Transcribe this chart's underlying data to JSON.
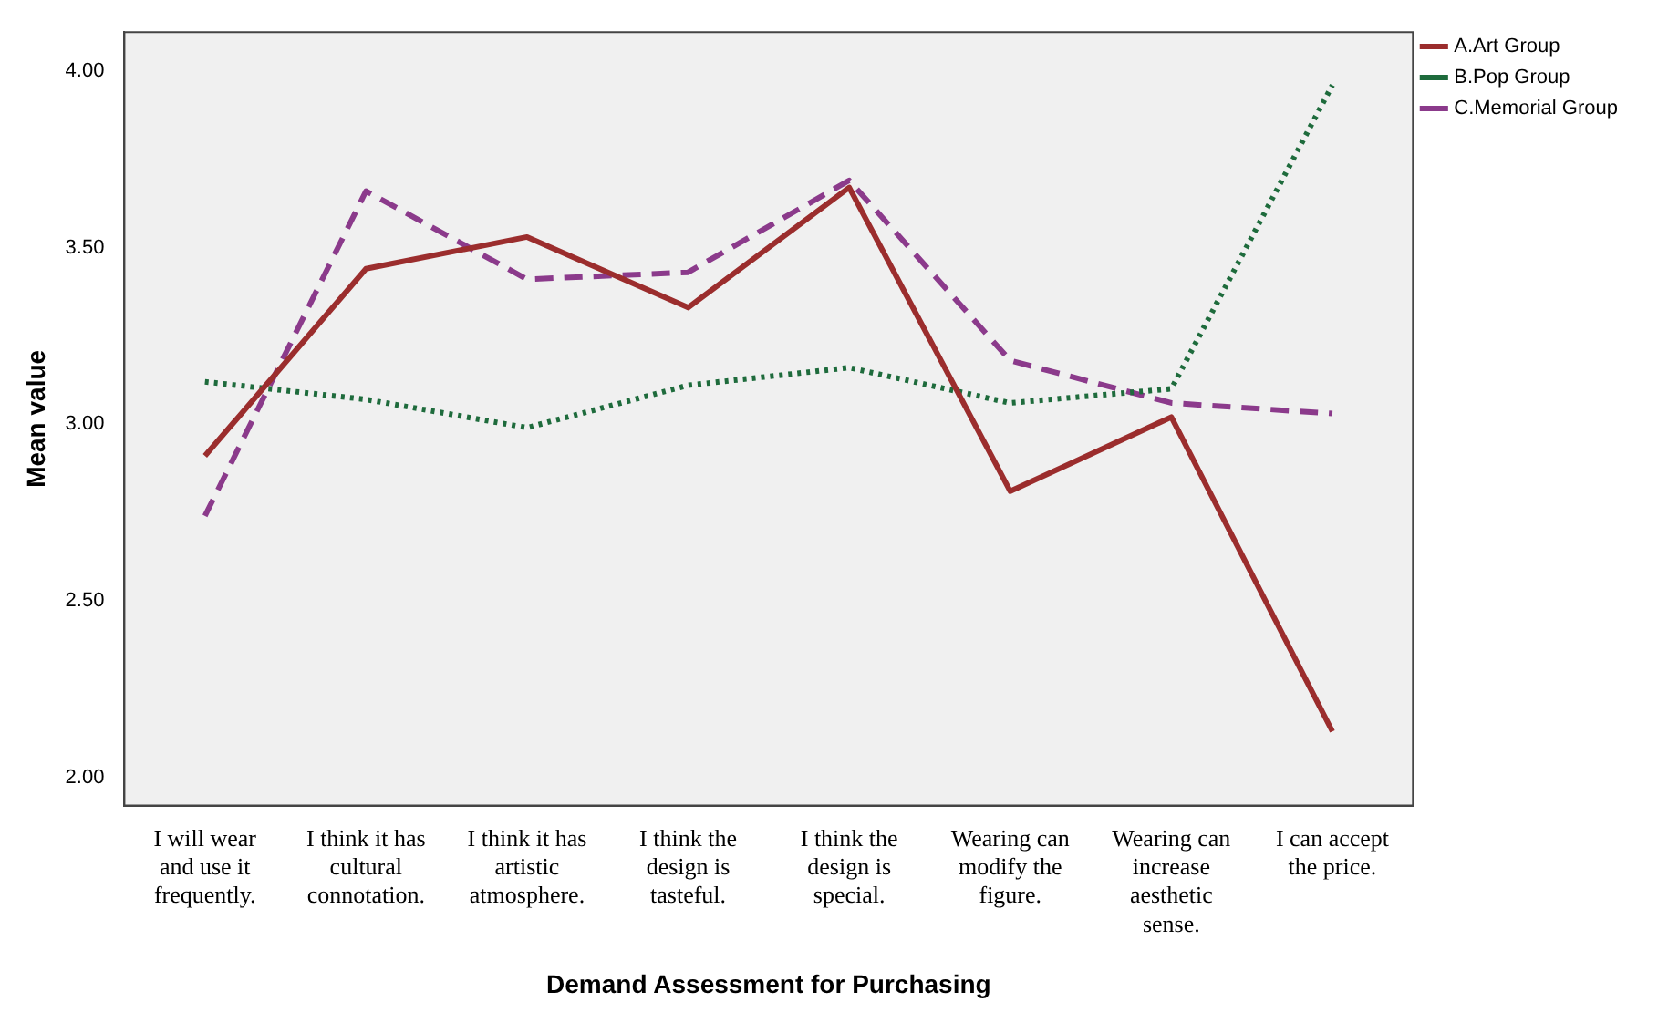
{
  "chart_data": {
    "type": "line",
    "xlabel": "Demand Assessment for Purchasing",
    "ylabel": "Mean value",
    "categories": [
      "I will wear and use it frequently.",
      "I think it has cultural connotation.",
      "I think it has artistic atmosphere.",
      "I think the design is tasteful.",
      "I think the design is special.",
      "Wearing can modify the figure.",
      "Wearing can increase aesthetic sense.",
      "I can accept the price."
    ],
    "series": [
      {
        "name": "A.Art Group",
        "color": "#9b2d2d",
        "line_style": "solid",
        "values": [
          2.91,
          3.44,
          3.53,
          3.33,
          3.67,
          2.81,
          3.02,
          2.13
        ]
      },
      {
        "name": "B.Pop Group",
        "color": "#1e6b3c",
        "line_style": "dotted",
        "values": [
          3.12,
          3.07,
          2.99,
          3.11,
          3.16,
          3.06,
          3.1,
          3.96
        ]
      },
      {
        "name": "C.Memorial Group",
        "color": "#8b3a8b",
        "line_style": "dashed",
        "values": [
          2.74,
          3.66,
          3.41,
          3.43,
          3.69,
          3.18,
          3.06,
          3.03
        ]
      }
    ],
    "ylim": [
      1.92,
      4.11
    ],
    "yticks": [
      {
        "value": 2,
        "label": "2.00"
      },
      {
        "value": 2.5,
        "label": "2.50"
      },
      {
        "value": 3,
        "label": "3.00"
      },
      {
        "value": 3.5,
        "label": "3.50"
      },
      {
        "value": 4,
        "label": "4.00"
      }
    ],
    "grid": false,
    "legend": "top right",
    "marker": "none"
  }
}
